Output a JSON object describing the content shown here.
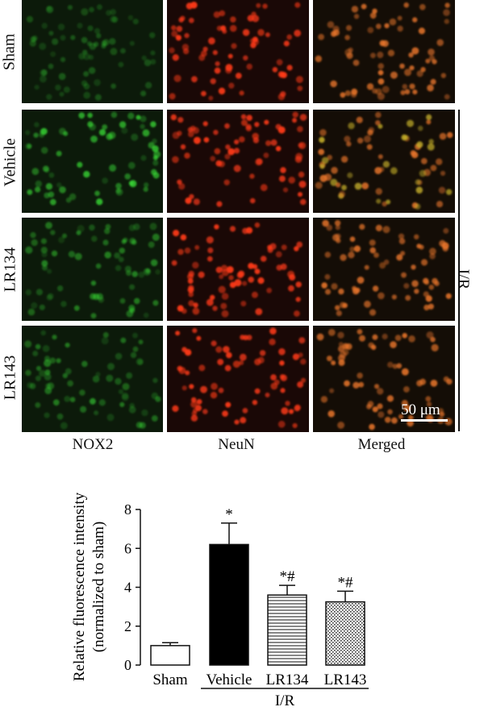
{
  "rows": [
    "Sham",
    "Vehicle",
    "LR134",
    "LR143"
  ],
  "columns": [
    "NOX2",
    "NeuN",
    "Merged"
  ],
  "ir_label": "I/R",
  "scale_bar": "50 μm",
  "colors": {
    "green": "#3adf36",
    "red": "#ff3a18",
    "orange": "#e6742a",
    "panel_bg": "#0a0a05"
  },
  "chart_data": {
    "type": "bar",
    "categories": [
      "Sham",
      "Vehicle",
      "LR134",
      "LR143"
    ],
    "values": [
      1.0,
      6.2,
      3.6,
      3.25
    ],
    "errors": [
      0.15,
      1.1,
      0.5,
      0.55
    ],
    "annotations": [
      "",
      "*",
      "*#",
      "*#"
    ],
    "fills": [
      "white",
      "black",
      "horizontal-lines",
      "dotted"
    ],
    "ylabel": "Relative fluorescence intensity (normalized to sham)",
    "ylabel_line1": "Relative fluorescence intensity",
    "ylabel_line2": "(normalized to sham)",
    "ylim": [
      0,
      8
    ],
    "yticks": [
      "0",
      "2",
      "4",
      "6",
      "8"
    ],
    "group_label": "I/R"
  }
}
